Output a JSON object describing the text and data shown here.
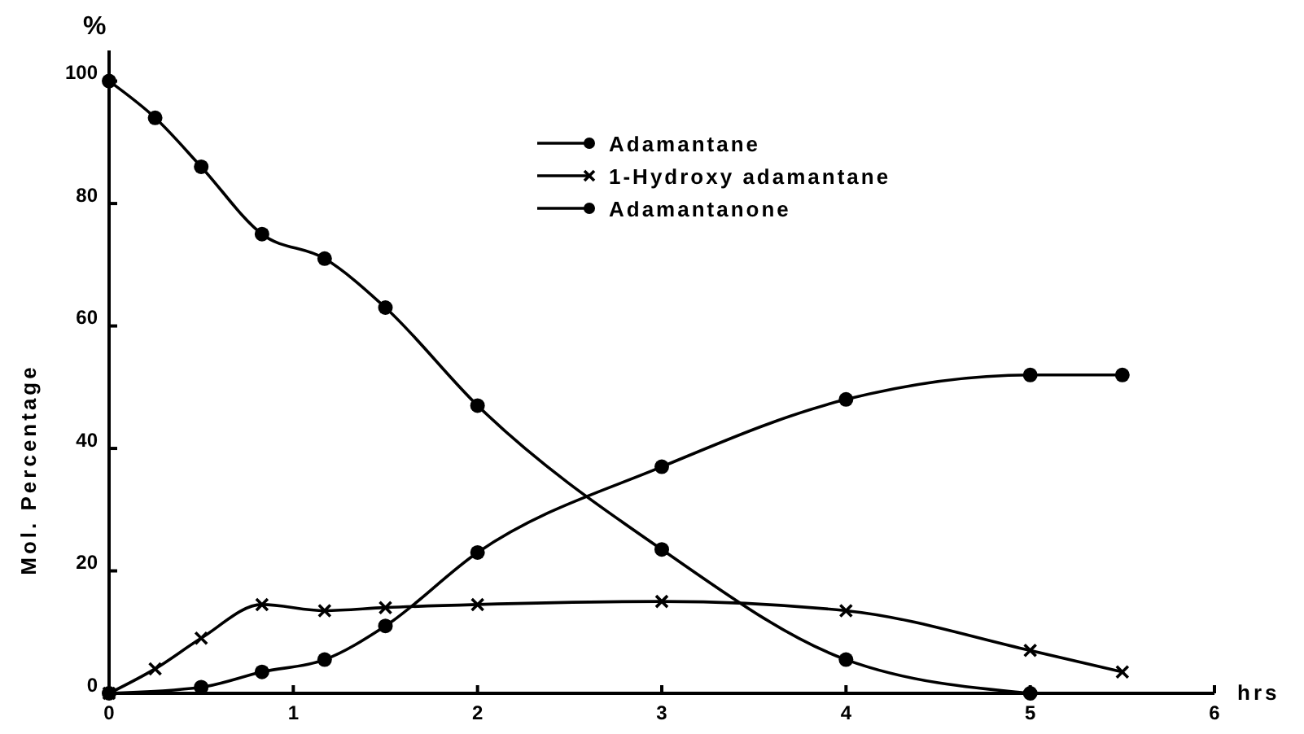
{
  "chart_data": {
    "type": "line",
    "ylabel": "Mol. Percentage",
    "xlabel": "hrs",
    "annotations": [
      "%"
    ],
    "xlim": [
      0,
      6
    ],
    "xticks": [
      0,
      1,
      2,
      3,
      4,
      5,
      6
    ],
    "ylim": [
      0,
      105
    ],
    "yticks": [
      0,
      20,
      40,
      60,
      80,
      100
    ],
    "legend": "top right",
    "grid": false,
    "series": [
      {
        "name": "Adamantane",
        "color": "#000000",
        "marker": "circle",
        "x": [
          0,
          0.25,
          0.5,
          0.83,
          1.17,
          1.5,
          2,
          3,
          4,
          5
        ],
        "values": [
          100,
          94,
          86,
          75,
          71,
          63,
          47,
          23.5,
          5.5,
          0
        ]
      },
      {
        "name": "1-Hydroxy adamantane",
        "color": "#000000",
        "marker": "cross",
        "x": [
          0,
          0.25,
          0.5,
          0.83,
          1.17,
          1.5,
          2,
          3,
          4,
          5,
          5.5
        ],
        "values": [
          0,
          4,
          9,
          14.5,
          13.5,
          14,
          14.5,
          15,
          13.5,
          7,
          3.5
        ]
      },
      {
        "name": "Adamantanone",
        "color": "#000000",
        "marker": "circle",
        "x": [
          0,
          0.5,
          0.83,
          1.17,
          1.5,
          2,
          3,
          4,
          5,
          5.5
        ],
        "values": [
          0,
          1,
          3.5,
          5.5,
          11,
          23,
          37,
          48,
          52,
          52
        ]
      }
    ]
  }
}
